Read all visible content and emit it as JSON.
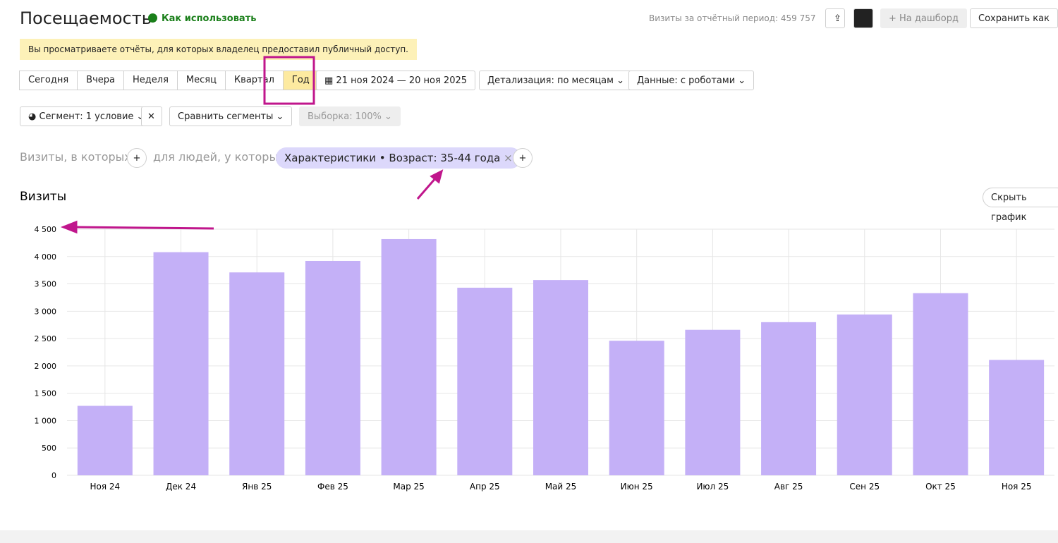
{
  "header": {
    "title": "Посещаемость",
    "help": "Как использовать",
    "visits_total": "Визиты за отчётный период: 459 757",
    "to_dashboard": "На дашборд",
    "save_as": "Сохранить как"
  },
  "notice": "Вы просматриваете отчёты, для которых владелец предоставил публичный доступ.",
  "periods": [
    "Сегодня",
    "Вчера",
    "Неделя",
    "Месяц",
    "Квартал",
    "Год"
  ],
  "date_range": "21 ноя 2024 — 20 ноя 2025",
  "detail": "Детализация: по месяцам",
  "robots": "Данные: с роботами",
  "segment": "Сегмент: 1 условие",
  "compare": "Сравнить сегменты",
  "sample": "Выборка: 100%",
  "filter": {
    "visits_where": "Визиты, в которых",
    "people_where": "для людей, у которых",
    "chip": "Характеристики • Возраст: 35-44 года"
  },
  "hide_chart": "Скрыть график",
  "chart_data": {
    "type": "bar",
    "title": "Визиты",
    "color": "#c4b0f7",
    "grid": true,
    "categories": [
      "Ноя 24",
      "Дек 24",
      "Янв 25",
      "Фев 25",
      "Мар 25",
      "Апр 25",
      "Май 25",
      "Июн 25",
      "Июл 25",
      "Авг 25",
      "Сен 25",
      "Окт 25",
      "Ноя 25"
    ],
    "values": [
      1270,
      4080,
      3710,
      3920,
      4320,
      3430,
      3570,
      2460,
      2660,
      2800,
      2940,
      3330,
      2110
    ],
    "ylim": [
      0,
      4500
    ],
    "yticks": [
      0,
      500,
      {
        "value": 1000,
        "label": "1 000"
      },
      {
        "value": 1500,
        "label": "1 500"
      },
      {
        "value": 2000,
        "label": "2 000"
      },
      {
        "value": 2500,
        "label": "2 500"
      },
      {
        "value": 3000,
        "label": "3 000"
      },
      {
        "value": 3500,
        "label": "3 500"
      },
      {
        "value": 4000,
        "label": "4 000"
      },
      {
        "value": 4500,
        "label": "4 500"
      }
    ]
  }
}
